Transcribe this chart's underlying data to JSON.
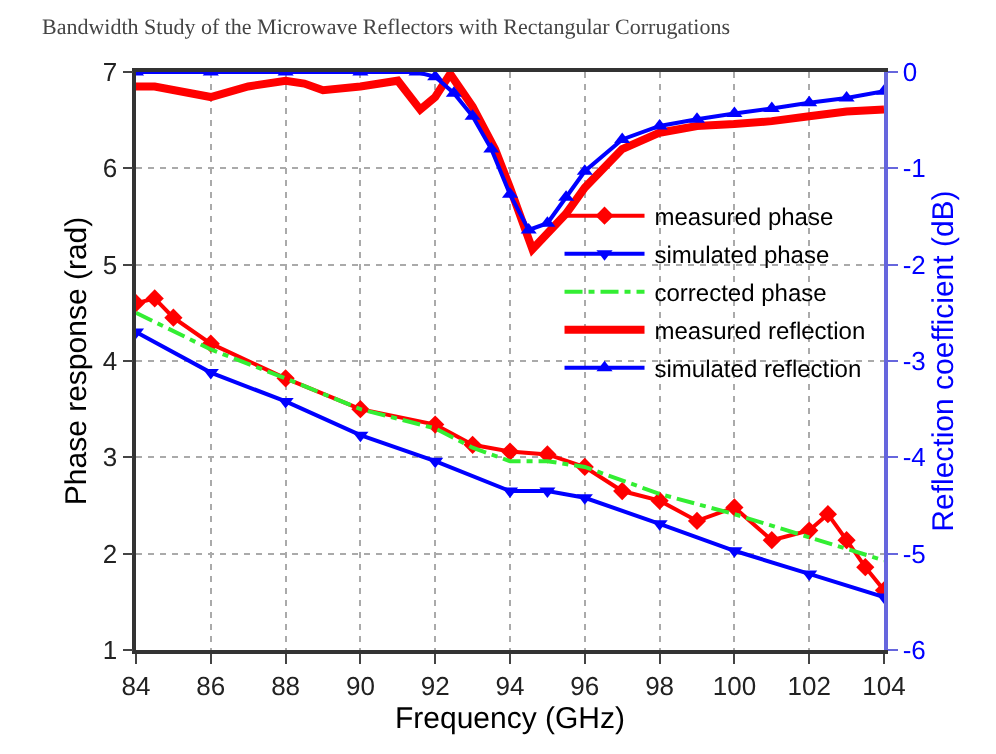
{
  "chart_data": {
    "type": "line",
    "xlabel": "Frequency (GHz)",
    "ylabel": "Phase response (rad)",
    "y2label": "Reflection coefficient (dB)",
    "annotations": [
      "Bandwidth Study of the Microwave Reflectors with Rectangular Corrugations"
    ],
    "xlim": [
      84,
      104
    ],
    "xticks": [
      84,
      86,
      88,
      90,
      92,
      94,
      96,
      98,
      100,
      102,
      104
    ],
    "ylim": [
      1,
      7
    ],
    "yticks": [
      1,
      2,
      3,
      4,
      5,
      6,
      7
    ],
    "y2lim": [
      -6,
      0
    ],
    "y2ticks": [
      -6,
      -5,
      -4,
      -3,
      -2,
      -1,
      0
    ],
    "grid": true,
    "legend": "right",
    "series": [
      {
        "name": "measured phase",
        "color": "#ff0000",
        "marker": "diamond",
        "line_style": "solid",
        "x": [
          84,
          84.5,
          85,
          86,
          88,
          90,
          92,
          93,
          94,
          95,
          96,
          97,
          98,
          99,
          100,
          101,
          102,
          102.5,
          103,
          103.5,
          104
        ],
        "values": [
          4.6,
          4.65,
          4.45,
          4.18,
          3.82,
          3.5,
          3.34,
          3.13,
          3.06,
          3.03,
          2.9,
          2.65,
          2.55,
          2.34,
          2.48,
          2.14,
          2.24,
          2.41,
          2.14,
          1.86,
          1.62
        ]
      },
      {
        "name": "simulated phase",
        "color": "#0000ff",
        "marker": "triangle-down",
        "line_style": "solid",
        "x": [
          84,
          86,
          88,
          90,
          92,
          94,
          95,
          96,
          98,
          100,
          102,
          104
        ],
        "values": [
          4.3,
          3.88,
          3.58,
          3.23,
          2.96,
          2.65,
          2.65,
          2.58,
          2.31,
          2.03,
          1.79,
          1.55
        ]
      },
      {
        "name": "corrected phase",
        "color": "#33ee33",
        "marker": "none",
        "line_style": "dashdot",
        "x": [
          84,
          86,
          88,
          90,
          92,
          93,
          94,
          95,
          96,
          98,
          100,
          102,
          104
        ],
        "values": [
          4.5,
          4.12,
          3.82,
          3.5,
          3.3,
          3.1,
          2.96,
          2.96,
          2.9,
          2.62,
          2.41,
          2.17,
          1.93
        ]
      },
      {
        "name": "measured reflection",
        "color": "#ff0000",
        "marker": "none",
        "line_style": "solid",
        "axis": "y2",
        "x": [
          84,
          84.5,
          86,
          87,
          88,
          88.5,
          89,
          90,
          91,
          91.6,
          92,
          92.4,
          93,
          93.6,
          94,
          94.6,
          95.5,
          96,
          97,
          98,
          99,
          100,
          101,
          102,
          103,
          104
        ],
        "values": [
          -0.15,
          -0.15,
          -0.26,
          -0.15,
          -0.09,
          -0.12,
          -0.19,
          -0.15,
          -0.09,
          -0.39,
          -0.26,
          -0.02,
          -0.36,
          -0.8,
          -1.2,
          -1.84,
          -1.47,
          -1.2,
          -0.8,
          -0.63,
          -0.56,
          -0.54,
          -0.51,
          -0.46,
          -0.41,
          -0.39
        ]
      },
      {
        "name": "simulated reflection",
        "color": "#0000ff",
        "marker": "triangle",
        "line_style": "solid",
        "axis": "y2",
        "x": [
          84,
          86,
          88,
          90,
          91.5,
          92,
          92.5,
          93,
          93.5,
          94,
          94.5,
          95,
          95.5,
          96,
          97,
          98,
          99,
          100,
          101,
          102,
          103,
          104
        ],
        "values": [
          0,
          0,
          0,
          0,
          0,
          -0.05,
          -0.22,
          -0.46,
          -0.8,
          -1.27,
          -1.64,
          -1.57,
          -1.3,
          -1.03,
          -0.7,
          -0.56,
          -0.49,
          -0.43,
          -0.38,
          -0.32,
          -0.27,
          -0.2
        ]
      }
    ]
  }
}
